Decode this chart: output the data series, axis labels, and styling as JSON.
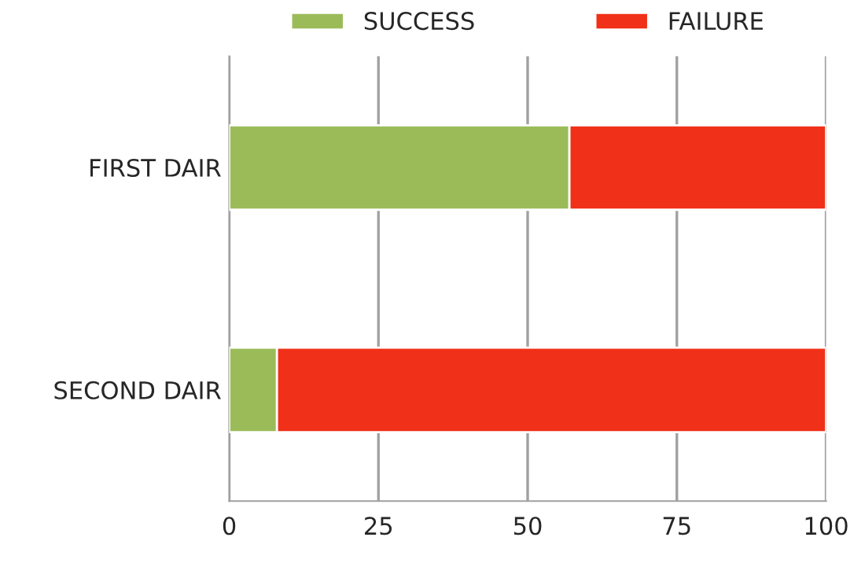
{
  "chart_data": {
    "type": "bar",
    "orientation": "horizontal",
    "stacked": true,
    "categories": [
      "FIRST DAIR",
      "SECOND DAIR"
    ],
    "series": [
      {
        "name": "SUCCESS",
        "color": "#9bbb59",
        "values": [
          57,
          8
        ]
      },
      {
        "name": "FAILURE",
        "color": "#f03018",
        "values": [
          43,
          92
        ]
      }
    ],
    "xlim": [
      0,
      100
    ],
    "xticks": [
      0,
      25,
      50,
      75,
      100
    ],
    "grid": "x",
    "legend": "top"
  }
}
